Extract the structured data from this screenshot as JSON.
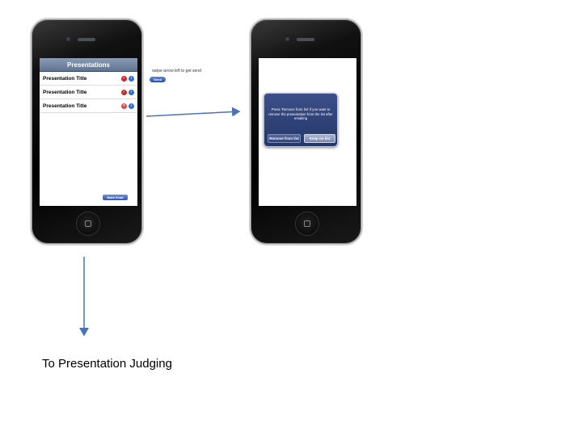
{
  "phone1": {
    "nav_title": "Presentations",
    "rows": [
      {
        "title": "Presentation Title",
        "status": "check-icon"
      },
      {
        "title": "Presentation Title",
        "status": "check-icon"
      },
      {
        "title": "Presentation Title",
        "status": "delete-icon"
      }
    ],
    "batch_button": "Batch Email"
  },
  "annotation": {
    "note": "swipe arrow left to get send",
    "send_button": "Send"
  },
  "phone2": {
    "alert_message": "Press 'Remove from list' if you want to remove the presentation from the list after emailing",
    "remove_button": "Remove from list",
    "keep_button": "Keep on list"
  },
  "caption": "To Presentation Judging",
  "colors": {
    "arrow": "#4a72b8",
    "nav_bar": "#6d80a0",
    "alert_bg": "#2f4278"
  }
}
